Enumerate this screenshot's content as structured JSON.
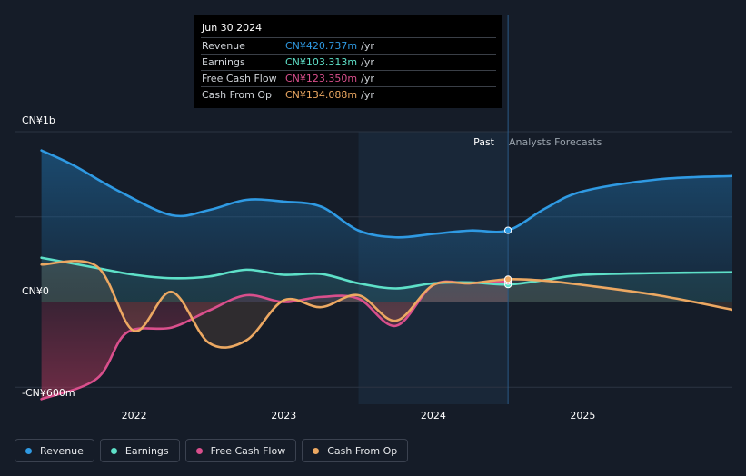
{
  "tooltip": {
    "date": "Jun 30 2024",
    "rows": [
      {
        "name": "Revenue",
        "value": "CN¥420.737m",
        "unit": "/yr",
        "color": "#2f9ae3"
      },
      {
        "name": "Earnings",
        "value": "CN¥103.313m",
        "unit": "/yr",
        "color": "#5ee0c8"
      },
      {
        "name": "Free Cash Flow",
        "value": "CN¥123.350m",
        "unit": "/yr",
        "color": "#d94f8c"
      },
      {
        "name": "Cash From Op",
        "value": "CN¥134.088m",
        "unit": "/yr",
        "color": "#eca862"
      }
    ]
  },
  "regions": {
    "past": "Past",
    "forecast": "Analysts Forecasts"
  },
  "legend": [
    {
      "name": "Revenue",
      "color": "#2f9ae3"
    },
    {
      "name": "Earnings",
      "color": "#5ee0c8"
    },
    {
      "name": "Free Cash Flow",
      "color": "#d94f8c"
    },
    {
      "name": "Cash From Op",
      "color": "#eca862"
    }
  ],
  "chart_data": {
    "type": "line",
    "y_axis_labels": [
      "CN¥1b",
      "CN¥0",
      "-CN¥600m"
    ],
    "x_tick_labels": [
      "2022",
      "2023",
      "2024",
      "2025"
    ],
    "x_ticks": [
      2022.0,
      2023.0,
      2024.0,
      2025.0
    ],
    "xlim": [
      2021.2,
      2026.0
    ],
    "ylim": [
      -600,
      1000
    ],
    "grid_values": [
      1000,
      500,
      0,
      -500
    ],
    "past_forecast_split": 2024.5,
    "highlight_start": 2023.5,
    "series": [
      {
        "name": "Revenue",
        "color": "#2f9ae3",
        "forecast": true,
        "points": [
          [
            2021.38,
            890
          ],
          [
            2021.6,
            800
          ],
          [
            2021.9,
            650
          ],
          [
            2022.25,
            510
          ],
          [
            2022.5,
            540
          ],
          [
            2022.75,
            600
          ],
          [
            2023.0,
            590
          ],
          [
            2023.25,
            560
          ],
          [
            2023.5,
            420
          ],
          [
            2023.75,
            380
          ],
          [
            2024.0,
            400
          ],
          [
            2024.25,
            420
          ],
          [
            2024.5,
            421
          ],
          [
            2024.75,
            550
          ],
          [
            2025.0,
            650
          ],
          [
            2025.5,
            720
          ],
          [
            2026.0,
            740
          ]
        ]
      },
      {
        "name": "Earnings",
        "color": "#5ee0c8",
        "forecast": true,
        "points": [
          [
            2021.38,
            260
          ],
          [
            2021.75,
            200
          ],
          [
            2022.0,
            160
          ],
          [
            2022.25,
            140
          ],
          [
            2022.5,
            150
          ],
          [
            2022.75,
            190
          ],
          [
            2023.0,
            160
          ],
          [
            2023.25,
            165
          ],
          [
            2023.5,
            110
          ],
          [
            2023.75,
            80
          ],
          [
            2024.0,
            110
          ],
          [
            2024.25,
            115
          ],
          [
            2024.5,
            103
          ],
          [
            2024.75,
            130
          ],
          [
            2025.0,
            160
          ],
          [
            2025.5,
            170
          ],
          [
            2026.0,
            175
          ]
        ]
      },
      {
        "name": "Free Cash Flow",
        "color": "#d94f8c",
        "forecast": false,
        "points": [
          [
            2021.38,
            -570
          ],
          [
            2021.75,
            -450
          ],
          [
            2021.95,
            -180
          ],
          [
            2022.25,
            -150
          ],
          [
            2022.5,
            -50
          ],
          [
            2022.75,
            40
          ],
          [
            2023.0,
            0
          ],
          [
            2023.25,
            30
          ],
          [
            2023.5,
            20
          ],
          [
            2023.75,
            -140
          ],
          [
            2024.0,
            100
          ],
          [
            2024.25,
            110
          ],
          [
            2024.5,
            123
          ]
        ]
      },
      {
        "name": "Cash From Op",
        "color": "#eca862",
        "forecast": true,
        "points": [
          [
            2021.38,
            220
          ],
          [
            2021.75,
            210
          ],
          [
            2022.0,
            -170
          ],
          [
            2022.25,
            60
          ],
          [
            2022.5,
            -240
          ],
          [
            2022.75,
            -225
          ],
          [
            2023.0,
            10
          ],
          [
            2023.25,
            -30
          ],
          [
            2023.5,
            40
          ],
          [
            2023.75,
            -110
          ],
          [
            2024.0,
            100
          ],
          [
            2024.25,
            110
          ],
          [
            2024.5,
            134
          ],
          [
            2024.75,
            125
          ],
          [
            2025.0,
            100
          ],
          [
            2025.5,
            40
          ],
          [
            2026.0,
            -45
          ]
        ]
      }
    ]
  }
}
